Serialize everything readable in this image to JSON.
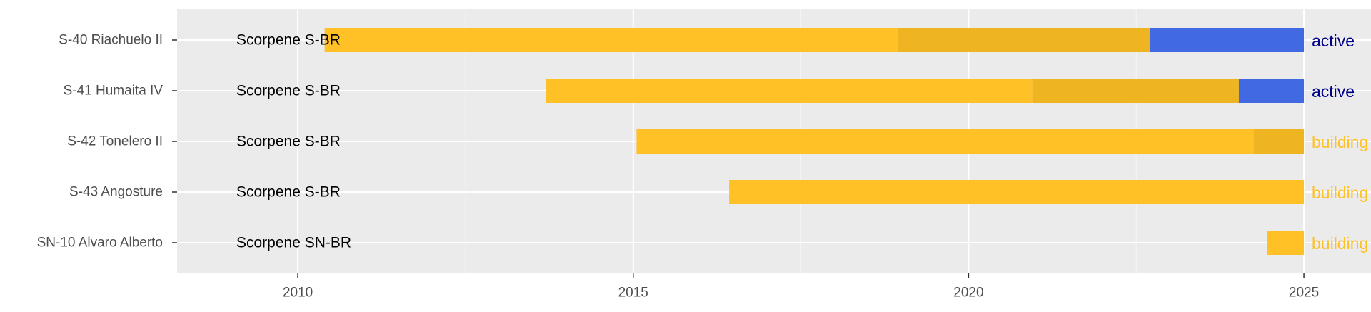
{
  "chart_data": {
    "type": "timeline",
    "title": "",
    "xlabel": "",
    "ylabel": "",
    "xlim": [
      2008.2,
      2026.0
    ],
    "x_ticks": [
      2010,
      2015,
      2020,
      2025
    ],
    "grid": true,
    "legend": "none",
    "colors": {
      "panel": "#EBEBEB",
      "grid_major": "#FFFFFF",
      "grid_minor": "#F5F5F5",
      "building": "#FFC125",
      "fitting_out": "#EEB422",
      "active": "#4169E1",
      "status_active": "#00008B",
      "status_building": "#FFC125",
      "axis_text": "#4D4D4D",
      "class_label": "#000000"
    },
    "rows": [
      {
        "name": "S-40 Riachuelo II",
        "class": "Scorpene S-BR",
        "segments": [
          {
            "phase": "building",
            "start": 2010.4,
            "end": 2018.95
          },
          {
            "phase": "fitting_out",
            "start": 2018.95,
            "end": 2022.7
          },
          {
            "phase": "active",
            "start": 2022.7,
            "end": 2025.0
          }
        ],
        "status": "active"
      },
      {
        "name": "S-41 Humaita IV",
        "class": "Scorpene S-BR",
        "segments": [
          {
            "phase": "building",
            "start": 2013.7,
            "end": 2020.95
          },
          {
            "phase": "fitting_out",
            "start": 2020.95,
            "end": 2024.03
          },
          {
            "phase": "active",
            "start": 2024.03,
            "end": 2025.0
          }
        ],
        "status": "active"
      },
      {
        "name": "S-42 Tonelero II",
        "class": "Scorpene S-BR",
        "segments": [
          {
            "phase": "building",
            "start": 2015.05,
            "end": 2024.25
          },
          {
            "phase": "fitting_out",
            "start": 2024.25,
            "end": 2025.0
          }
        ],
        "status": "building"
      },
      {
        "name": "S-43 Angosture",
        "class": "Scorpene S-BR",
        "segments": [
          {
            "phase": "building",
            "start": 2016.43,
            "end": 2025.0
          }
        ],
        "status": "building"
      },
      {
        "name": "SN-10 Alvaro Alberto",
        "class": "Scorpene SN-BR",
        "segments": [
          {
            "phase": "building",
            "start": 2024.45,
            "end": 2025.0
          }
        ],
        "status": "building"
      }
    ]
  }
}
